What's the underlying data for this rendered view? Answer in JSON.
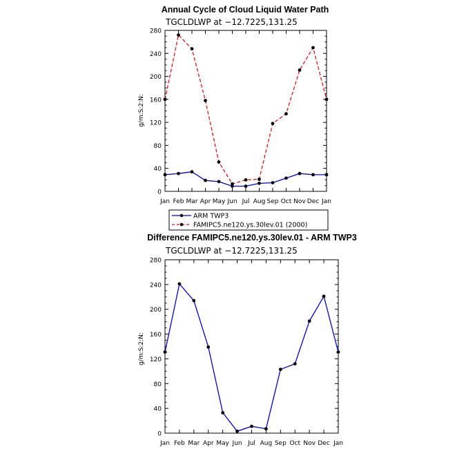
{
  "chart_data": [
    {
      "type": "line",
      "title": "Annual Cycle of Cloud Liquid Water Path",
      "subtitle": "TGCLDLWP  at  −12.7225,131.25",
      "xlabel": "",
      "ylabel": "g/m:S:2:N:",
      "categories": [
        "Jan",
        "Feb",
        "Mar",
        "Apr",
        "May",
        "Jun",
        "Jul",
        "Aug",
        "Sep",
        "Oct",
        "Nov",
        "Dec",
        "Jan"
      ],
      "ylim": [
        0,
        280
      ],
      "yticks": [
        "0",
        "40",
        "80",
        "120",
        "160",
        "200",
        "240",
        "280"
      ],
      "grid": false,
      "legend": "bottom",
      "series": [
        {
          "name": "ARM TWP3",
          "color": "#0000cc",
          "dash": "solid",
          "values": [
            29,
            31,
            34,
            19,
            17,
            9,
            9,
            14,
            15,
            23,
            31,
            29,
            29
          ]
        },
        {
          "name": "FAMIPC5.ne120.ys.30lev.01 (2000)",
          "color": "#dd1111",
          "dash": "dashed",
          "values": [
            160,
            272,
            248,
            158,
            51,
            13,
            20,
            21,
            118,
            135,
            211,
            250,
            160
          ]
        }
      ]
    },
    {
      "type": "line",
      "title": "Difference FAMIPC5.ne120.ys.30lev.01 - ARM TWP3",
      "subtitle": "TGCLDLWP  at  −12.7225,131.25",
      "xlabel": "",
      "ylabel": "g/m:S:2:N:",
      "categories": [
        "Jan",
        "Feb",
        "Mar",
        "Apr",
        "May",
        "Jun",
        "Jul",
        "Aug",
        "Sep",
        "Oct",
        "Nov",
        "Dec",
        "Jan"
      ],
      "ylim": [
        0,
        280
      ],
      "yticks": [
        "0",
        "40",
        "80",
        "120",
        "160",
        "200",
        "240",
        "280"
      ],
      "grid": false,
      "series": [
        {
          "color": "#0000cc",
          "dash": "solid",
          "values": [
            131,
            241,
            214,
            139,
            33,
            3,
            11,
            7,
            103,
            112,
            181,
            221,
            131
          ]
        }
      ]
    }
  ]
}
